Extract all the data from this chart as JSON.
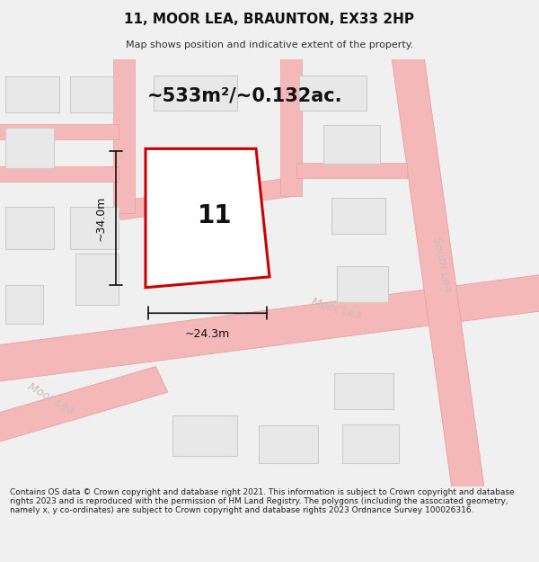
{
  "title": "11, MOOR LEA, BRAUNTON, EX33 2HP",
  "subtitle": "Map shows position and indicative extent of the property.",
  "area_label": "~533m²/~0.132ac.",
  "plot_number": "11",
  "dim_width": "~24.3m",
  "dim_height": "~34.0m",
  "footer_text": "Contains OS data © Crown copyright and database right 2021. This information is subject to Crown copyright and database rights 2023 and is reproduced with the permission of HM Land Registry. The polygons (including the associated geometry, namely x, y co-ordinates) are subject to Crown copyright and database rights 2023 Ordnance Survey 100026316.",
  "bg_color": "#f0f0f0",
  "map_bg_color": "#ffffff",
  "road_color": "#f5b8b8",
  "road_line_color": "#e8a0a0",
  "building_color": "#e8e8e8",
  "building_border": "#cccccc",
  "plot_border": "#cc0000",
  "annotation_color": "#111111",
  "street_color": "#ccbbbb",
  "title_fontsize": 11,
  "subtitle_fontsize": 8,
  "area_fontsize": 15,
  "plot_num_fontsize": 20,
  "dim_fontsize": 9,
  "street_fontsize": 9,
  "footer_fontsize": 6.5
}
